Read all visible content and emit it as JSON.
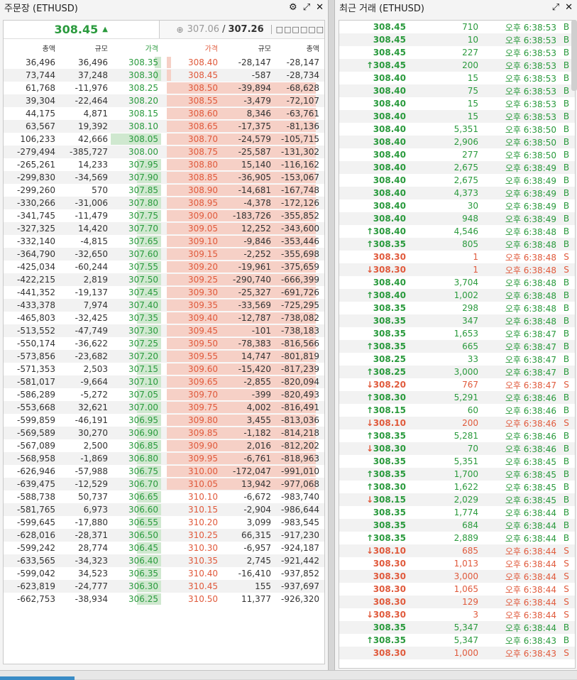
{
  "orderbook": {
    "title": "주문장 (ETHUSD)",
    "last_price": "308.45",
    "ref_price_a": "307.06",
    "ref_price_b": "307.26",
    "ref_button": "□□□□□□",
    "col_headers": {
      "bid_total": "총액",
      "bid_size": "규모",
      "bid_price": "가격",
      "ask_price": "가격",
      "ask_size": "규모",
      "ask_total": "총액"
    },
    "rows": [
      {
        "bt": "36,496",
        "bs": "36,496",
        "bp": "308.35",
        "ap": "308.40",
        "as": "-28,147",
        "at": "-28,147",
        "bw": 0.12,
        "aw": 0.03
      },
      {
        "bt": "73,744",
        "bs": "37,248",
        "bp": "308.30",
        "ap": "308.45",
        "as": "-587",
        "at": "-28,734",
        "bw": 0.12,
        "aw": 0.03
      },
      {
        "bt": "61,768",
        "bs": "-11,976",
        "bp": "308.25",
        "ap": "308.50",
        "as": "-39,894",
        "at": "-68,628",
        "bw": 0.0,
        "aw": 0.97
      },
      {
        "bt": "39,304",
        "bs": "-22,464",
        "bp": "308.20",
        "ap": "308.55",
        "as": "-3,479",
        "at": "-72,107",
        "bw": 0.0,
        "aw": 0.97
      },
      {
        "bt": "44,175",
        "bs": "4,871",
        "bp": "308.15",
        "ap": "308.60",
        "as": "8,346",
        "at": "-63,761",
        "bw": 0.0,
        "aw": 0.97
      },
      {
        "bt": "63,567",
        "bs": "19,392",
        "bp": "308.10",
        "ap": "308.65",
        "as": "-17,375",
        "at": "-81,136",
        "bw": 0.0,
        "aw": 0.97
      },
      {
        "bt": "106,233",
        "bs": "42,666",
        "bp": "308.05",
        "ap": "308.70",
        "as": "-24,579",
        "at": "-105,715",
        "bw": 0.95,
        "aw": 0.97
      },
      {
        "bt": "-279,494",
        "bs": "-385,727",
        "bp": "308.00",
        "ap": "308.75",
        "as": "-25,587",
        "at": "-131,302",
        "bw": 0.0,
        "aw": 0.97
      },
      {
        "bt": "-265,261",
        "bs": "14,233",
        "bp": "307.95",
        "ap": "308.80",
        "as": "15,140",
        "at": "-116,162",
        "bw": 0.45,
        "aw": 0.97
      },
      {
        "bt": "-299,830",
        "bs": "-34,569",
        "bp": "307.90",
        "ap": "308.85",
        "as": "-36,905",
        "at": "-153,067",
        "bw": 0.45,
        "aw": 0.97
      },
      {
        "bt": "-299,260",
        "bs": "570",
        "bp": "307.85",
        "ap": "308.90",
        "as": "-14,681",
        "at": "-167,748",
        "bw": 0.45,
        "aw": 0.97
      },
      {
        "bt": "-330,266",
        "bs": "-31,006",
        "bp": "307.80",
        "ap": "308.95",
        "as": "-4,378",
        "at": "-172,126",
        "bw": 0.45,
        "aw": 0.97
      },
      {
        "bt": "-341,745",
        "bs": "-11,479",
        "bp": "307.75",
        "ap": "309.00",
        "as": "-183,726",
        "at": "-355,852",
        "bw": 0.45,
        "aw": 0.97
      },
      {
        "bt": "-327,325",
        "bs": "14,420",
        "bp": "307.70",
        "ap": "309.05",
        "as": "12,252",
        "at": "-343,600",
        "bw": 0.45,
        "aw": 0.97
      },
      {
        "bt": "-332,140",
        "bs": "-4,815",
        "bp": "307.65",
        "ap": "309.10",
        "as": "-9,846",
        "at": "-353,446",
        "bw": 0.45,
        "aw": 0.97
      },
      {
        "bt": "-364,790",
        "bs": "-32,650",
        "bp": "307.60",
        "ap": "309.15",
        "as": "-2,252",
        "at": "-355,698",
        "bw": 0.45,
        "aw": 0.97
      },
      {
        "bt": "-425,034",
        "bs": "-60,244",
        "bp": "307.55",
        "ap": "309.20",
        "as": "-19,961",
        "at": "-375,659",
        "bw": 0.45,
        "aw": 0.97
      },
      {
        "bt": "-422,215",
        "bs": "2,819",
        "bp": "307.50",
        "ap": "309.25",
        "as": "-290,740",
        "at": "-666,399",
        "bw": 0.45,
        "aw": 0.97
      },
      {
        "bt": "-441,352",
        "bs": "-19,137",
        "bp": "307.45",
        "ap": "309.30",
        "as": "-25,327",
        "at": "-691,726",
        "bw": 0.45,
        "aw": 0.97
      },
      {
        "bt": "-433,378",
        "bs": "7,974",
        "bp": "307.40",
        "ap": "309.35",
        "as": "-33,569",
        "at": "-725,295",
        "bw": 0.45,
        "aw": 0.97
      },
      {
        "bt": "-465,803",
        "bs": "-32,425",
        "bp": "307.35",
        "ap": "309.40",
        "as": "-12,787",
        "at": "-738,082",
        "bw": 0.45,
        "aw": 0.97
      },
      {
        "bt": "-513,552",
        "bs": "-47,749",
        "bp": "307.30",
        "ap": "309.45",
        "as": "-101",
        "at": "-738,183",
        "bw": 0.45,
        "aw": 0.97
      },
      {
        "bt": "-550,174",
        "bs": "-36,622",
        "bp": "307.25",
        "ap": "309.50",
        "as": "-78,383",
        "at": "-816,566",
        "bw": 0.45,
        "aw": 0.97
      },
      {
        "bt": "-573,856",
        "bs": "-23,682",
        "bp": "307.20",
        "ap": "309.55",
        "as": "14,747",
        "at": "-801,819",
        "bw": 0.45,
        "aw": 0.97
      },
      {
        "bt": "-571,353",
        "bs": "2,503",
        "bp": "307.15",
        "ap": "309.60",
        "as": "-15,420",
        "at": "-817,239",
        "bw": 0.45,
        "aw": 0.97
      },
      {
        "bt": "-581,017",
        "bs": "-9,664",
        "bp": "307.10",
        "ap": "309.65",
        "as": "-2,855",
        "at": "-820,094",
        "bw": 0.45,
        "aw": 0.97
      },
      {
        "bt": "-586,289",
        "bs": "-5,272",
        "bp": "307.05",
        "ap": "309.70",
        "as": "-399",
        "at": "-820,493",
        "bw": 0.45,
        "aw": 0.97
      },
      {
        "bt": "-553,668",
        "bs": "32,621",
        "bp": "307.00",
        "ap": "309.75",
        "as": "4,002",
        "at": "-816,491",
        "bw": 0.45,
        "aw": 0.97
      },
      {
        "bt": "-599,859",
        "bs": "-46,191",
        "bp": "306.95",
        "ap": "309.80",
        "as": "3,455",
        "at": "-813,036",
        "bw": 0.45,
        "aw": 0.97
      },
      {
        "bt": "-569,589",
        "bs": "30,270",
        "bp": "306.90",
        "ap": "309.85",
        "as": "-1,182",
        "at": "-814,218",
        "bw": 0.45,
        "aw": 0.97
      },
      {
        "bt": "-567,089",
        "bs": "2,500",
        "bp": "306.85",
        "ap": "309.90",
        "as": "2,016",
        "at": "-812,202",
        "bw": 0.45,
        "aw": 0.97
      },
      {
        "bt": "-568,958",
        "bs": "-1,869",
        "bp": "306.80",
        "ap": "309.95",
        "as": "-6,761",
        "at": "-818,963",
        "bw": 0.45,
        "aw": 0.97
      },
      {
        "bt": "-626,946",
        "bs": "-57,988",
        "bp": "306.75",
        "ap": "310.00",
        "as": "-172,047",
        "at": "-991,010",
        "bw": 0.45,
        "aw": 0.97
      },
      {
        "bt": "-639,475",
        "bs": "-12,529",
        "bp": "306.70",
        "ap": "310.05",
        "as": "13,942",
        "at": "-977,068",
        "bw": 0.45,
        "aw": 0.97
      },
      {
        "bt": "-588,738",
        "bs": "50,737",
        "bp": "306.65",
        "ap": "310.10",
        "as": "-6,672",
        "at": "-983,740",
        "bw": 0.45,
        "aw": 0.0
      },
      {
        "bt": "-581,765",
        "bs": "6,973",
        "bp": "306.60",
        "ap": "310.15",
        "as": "-2,904",
        "at": "-986,644",
        "bw": 0.45,
        "aw": 0.0
      },
      {
        "bt": "-599,645",
        "bs": "-17,880",
        "bp": "306.55",
        "ap": "310.20",
        "as": "3,099",
        "at": "-983,545",
        "bw": 0.45,
        "aw": 0.0
      },
      {
        "bt": "-628,016",
        "bs": "-28,371",
        "bp": "306.50",
        "ap": "310.25",
        "as": "66,315",
        "at": "-917,230",
        "bw": 0.45,
        "aw": 0.0
      },
      {
        "bt": "-599,242",
        "bs": "28,774",
        "bp": "306.45",
        "ap": "310.30",
        "as": "-6,957",
        "at": "-924,187",
        "bw": 0.45,
        "aw": 0.0
      },
      {
        "bt": "-633,565",
        "bs": "-34,323",
        "bp": "306.40",
        "ap": "310.35",
        "as": "2,745",
        "at": "-921,442",
        "bw": 0.45,
        "aw": 0.0
      },
      {
        "bt": "-599,042",
        "bs": "34,523",
        "bp": "306.35",
        "ap": "310.40",
        "as": "-16,410",
        "at": "-937,852",
        "bw": 0.45,
        "aw": 0.0
      },
      {
        "bt": "-623,819",
        "bs": "-24,777",
        "bp": "306.30",
        "ap": "310.45",
        "as": "155",
        "at": "-937,697",
        "bw": 0.45,
        "aw": 0.0
      },
      {
        "bt": "-662,753",
        "bs": "-38,934",
        "bp": "306.25",
        "ap": "310.50",
        "as": "11,377",
        "at": "-926,320",
        "bw": 0.45,
        "aw": 0.0
      }
    ]
  },
  "trades": {
    "title": "최근 거래 (ETHUSD)",
    "rows": [
      {
        "p": "308.45",
        "q": "710",
        "t": "오후 6:38:53",
        "s": "B",
        "arrow": ""
      },
      {
        "p": "308.45",
        "q": "10",
        "t": "오후 6:38:53",
        "s": "B",
        "arrow": ""
      },
      {
        "p": "308.45",
        "q": "227",
        "t": "오후 6:38:53",
        "s": "B",
        "arrow": ""
      },
      {
        "p": "308.45",
        "q": "200",
        "t": "오후 6:38:53",
        "s": "B",
        "arrow": "up"
      },
      {
        "p": "308.40",
        "q": "15",
        "t": "오후 6:38:53",
        "s": "B",
        "arrow": ""
      },
      {
        "p": "308.40",
        "q": "75",
        "t": "오후 6:38:53",
        "s": "B",
        "arrow": ""
      },
      {
        "p": "308.40",
        "q": "15",
        "t": "오후 6:38:53",
        "s": "B",
        "arrow": ""
      },
      {
        "p": "308.40",
        "q": "15",
        "t": "오후 6:38:53",
        "s": "B",
        "arrow": ""
      },
      {
        "p": "308.40",
        "q": "5,351",
        "t": "오후 6:38:50",
        "s": "B",
        "arrow": ""
      },
      {
        "p": "308.40",
        "q": "2,906",
        "t": "오후 6:38:50",
        "s": "B",
        "arrow": ""
      },
      {
        "p": "308.40",
        "q": "277",
        "t": "오후 6:38:50",
        "s": "B",
        "arrow": ""
      },
      {
        "p": "308.40",
        "q": "2,675",
        "t": "오후 6:38:49",
        "s": "B",
        "arrow": ""
      },
      {
        "p": "308.40",
        "q": "2,675",
        "t": "오후 6:38:49",
        "s": "B",
        "arrow": ""
      },
      {
        "p": "308.40",
        "q": "4,373",
        "t": "오후 6:38:49",
        "s": "B",
        "arrow": ""
      },
      {
        "p": "308.40",
        "q": "30",
        "t": "오후 6:38:49",
        "s": "B",
        "arrow": ""
      },
      {
        "p": "308.40",
        "q": "948",
        "t": "오후 6:38:49",
        "s": "B",
        "arrow": ""
      },
      {
        "p": "308.40",
        "q": "4,546",
        "t": "오후 6:38:48",
        "s": "B",
        "arrow": "up"
      },
      {
        "p": "308.35",
        "q": "805",
        "t": "오후 6:38:48",
        "s": "B",
        "arrow": "up"
      },
      {
        "p": "308.30",
        "q": "1",
        "t": "오후 6:38:48",
        "s": "S",
        "arrow": ""
      },
      {
        "p": "308.30",
        "q": "1",
        "t": "오후 6:38:48",
        "s": "S",
        "arrow": "down"
      },
      {
        "p": "308.40",
        "q": "3,704",
        "t": "오후 6:38:48",
        "s": "B",
        "arrow": ""
      },
      {
        "p": "308.40",
        "q": "1,002",
        "t": "오후 6:38:48",
        "s": "B",
        "arrow": "up"
      },
      {
        "p": "308.35",
        "q": "298",
        "t": "오후 6:38:48",
        "s": "B",
        "arrow": ""
      },
      {
        "p": "308.35",
        "q": "347",
        "t": "오후 6:38:48",
        "s": "B",
        "arrow": ""
      },
      {
        "p": "308.35",
        "q": "1,653",
        "t": "오후 6:38:47",
        "s": "B",
        "arrow": ""
      },
      {
        "p": "308.35",
        "q": "665",
        "t": "오후 6:38:47",
        "s": "B",
        "arrow": "up"
      },
      {
        "p": "308.25",
        "q": "33",
        "t": "오후 6:38:47",
        "s": "B",
        "arrow": ""
      },
      {
        "p": "308.25",
        "q": "3,000",
        "t": "오후 6:38:47",
        "s": "B",
        "arrow": "up"
      },
      {
        "p": "308.20",
        "q": "767",
        "t": "오후 6:38:47",
        "s": "S",
        "arrow": "down"
      },
      {
        "p": "308.30",
        "q": "5,291",
        "t": "오후 6:38:46",
        "s": "B",
        "arrow": "up"
      },
      {
        "p": "308.15",
        "q": "60",
        "t": "오후 6:38:46",
        "s": "B",
        "arrow": "up"
      },
      {
        "p": "308.10",
        "q": "200",
        "t": "오후 6:38:46",
        "s": "S",
        "arrow": "down"
      },
      {
        "p": "308.35",
        "q": "5,281",
        "t": "오후 6:38:46",
        "s": "B",
        "arrow": "up"
      },
      {
        "p": "308.30",
        "q": "70",
        "t": "오후 6:38:46",
        "s": "B",
        "arrow": "down"
      },
      {
        "p": "308.35",
        "q": "5,351",
        "t": "오후 6:38:45",
        "s": "B",
        "arrow": ""
      },
      {
        "p": "308.35",
        "q": "1,700",
        "t": "오후 6:38:45",
        "s": "B",
        "arrow": "up"
      },
      {
        "p": "308.30",
        "q": "1,622",
        "t": "오후 6:38:45",
        "s": "B",
        "arrow": "up"
      },
      {
        "p": "308.15",
        "q": "2,029",
        "t": "오후 6:38:45",
        "s": "B",
        "arrow": "down"
      },
      {
        "p": "308.35",
        "q": "1,774",
        "t": "오후 6:38:44",
        "s": "B",
        "arrow": ""
      },
      {
        "p": "308.35",
        "q": "684",
        "t": "오후 6:38:44",
        "s": "B",
        "arrow": ""
      },
      {
        "p": "308.35",
        "q": "2,889",
        "t": "오후 6:38:44",
        "s": "B",
        "arrow": "up"
      },
      {
        "p": "308.10",
        "q": "685",
        "t": "오후 6:38:44",
        "s": "S",
        "arrow": "down"
      },
      {
        "p": "308.30",
        "q": "1,013",
        "t": "오후 6:38:44",
        "s": "S",
        "arrow": ""
      },
      {
        "p": "308.30",
        "q": "3,000",
        "t": "오후 6:38:44",
        "s": "S",
        "arrow": ""
      },
      {
        "p": "308.30",
        "q": "1,065",
        "t": "오후 6:38:44",
        "s": "S",
        "arrow": ""
      },
      {
        "p": "308.30",
        "q": "129",
        "t": "오후 6:38:44",
        "s": "S",
        "arrow": ""
      },
      {
        "p": "308.30",
        "q": "3",
        "t": "오후 6:38:44",
        "s": "S",
        "arrow": "down"
      },
      {
        "p": "308.35",
        "q": "5,347",
        "t": "오후 6:38:44",
        "s": "B",
        "arrow": ""
      },
      {
        "p": "308.35",
        "q": "5,347",
        "t": "오후 6:38:43",
        "s": "B",
        "arrow": "up"
      },
      {
        "p": "308.30",
        "q": "1,000",
        "t": "오후 6:38:43",
        "s": "S",
        "arrow": ""
      }
    ]
  },
  "icons": {
    "settings": "gear-icon",
    "expand": "expand-icon",
    "close": "close-icon",
    "globe": "globe-icon"
  },
  "colors": {
    "buy": "#2a9a3d",
    "sell": "#e05a3c",
    "bid_bar": "#cfe8cf",
    "ask_bar": "#f6d0c6"
  }
}
